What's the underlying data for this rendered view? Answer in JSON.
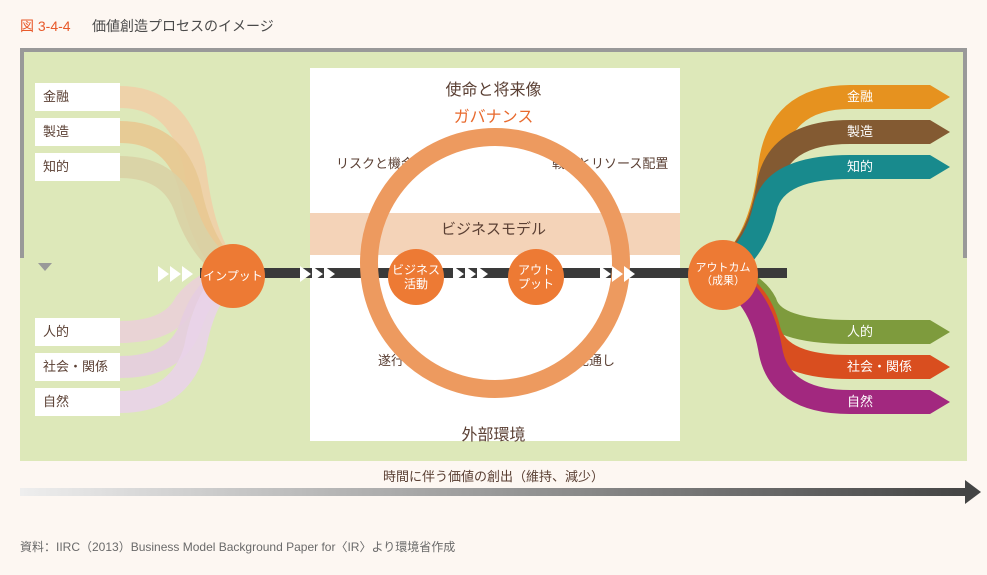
{
  "figure": {
    "number": "図 3-4-4",
    "title": "価値創造プロセスのイメージ",
    "source": "資料：IIRC（2013）Business Model Background Paper for〈IR〉より環境省作成"
  },
  "colors": {
    "background": "#fdf7f2",
    "panel": "#dde8b9",
    "accent": "#e85a2b",
    "circle": "#ed7a34",
    "ring": "#ed9a5f",
    "band": "#f4d3b8",
    "text": "#5a3f33",
    "flowline": "#3a3a3a",
    "feedback": "#999999"
  },
  "headings": {
    "mission": "使命と将来像",
    "governance": "ガバナンス",
    "business_model": "ビジネスモデル",
    "external_env": "外部環境"
  },
  "quadrant_labels": {
    "risk": "リスクと機会",
    "strategy": "戦略とリソース配置",
    "performance": "遂行",
    "outlook": "見通し"
  },
  "flow_nodes": {
    "input": "インプット",
    "activities": "ビジネス\n活動",
    "output": "アウト\nプット",
    "outcome": "アウトカム\n（成果）"
  },
  "capitals": [
    {
      "key": "financial",
      "label": "金融",
      "left_color": "#f0cfa7",
      "right_color": "#e6921f",
      "right_text": "#ffffff"
    },
    {
      "key": "manufactured",
      "label": "製造",
      "left_color": "#e8c891",
      "right_color": "#835a32",
      "right_text": "#ffffff"
    },
    {
      "key": "intellectual",
      "label": "知的",
      "left_color": "#d9d2a5",
      "right_color": "#188a8d",
      "right_text": "#ffffff"
    },
    {
      "key": "human",
      "label": "人的",
      "left_color": "#ead0d8",
      "right_color": "#7e9b3d",
      "right_text": "#ffffff"
    },
    {
      "key": "social",
      "label": "社会・関係",
      "left_color": "#e5cde0",
      "right_color": "#d94e1f",
      "right_text": "#ffffff"
    },
    {
      "key": "natural",
      "label": "自然",
      "left_color": "#e9d3e9",
      "right_color": "#a2287f",
      "right_text": "#ffffff"
    }
  ],
  "left_capital_y": [
    35,
    70,
    105,
    270,
    305,
    340
  ],
  "right_capital_y": [
    35,
    70,
    105,
    270,
    305,
    340
  ],
  "time_axis": {
    "label": "時間に伴う価値の創出（維持、減少）"
  }
}
